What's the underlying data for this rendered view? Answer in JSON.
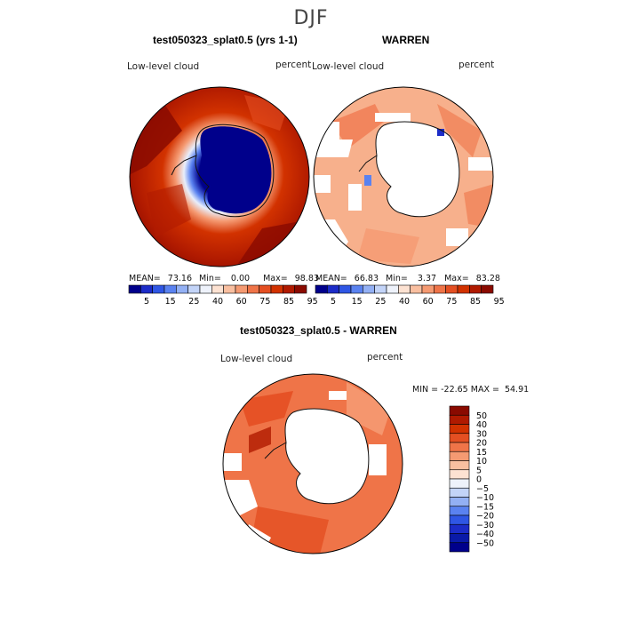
{
  "season": "DJF",
  "panels": [
    {
      "title": "test050323_splat0.5 (yrs 1-1)",
      "variable": "Low-level cloud",
      "units": "percent",
      "stats": {
        "mean_label": "MEAN=",
        "mean": "73.16",
        "min_label": "Min=",
        "min": "0.00",
        "max_label": "Max=",
        "max": "98.83"
      }
    },
    {
      "title": "WARREN",
      "variable": "Low-level cloud",
      "units": "percent",
      "stats": {
        "mean_label": "MEAN=",
        "mean": "66.83",
        "min_label": "Min=",
        "min": "3.37",
        "max_label": "Max=",
        "max": "83.28"
      }
    },
    {
      "title": "test050323_splat0.5 - WARREN",
      "variable": "Low-level cloud",
      "units": "percent",
      "minmax_text": "MIN = -22.65 MAX =  54.91"
    }
  ],
  "absolute_colorbar": {
    "labels": [
      "5",
      "15",
      "25",
      "40",
      "60",
      "75",
      "85",
      "95"
    ],
    "colors": [
      "#00008b",
      "#1c2cc8",
      "#2f56e4",
      "#5a82f0",
      "#93b0f4",
      "#c3d4f8",
      "#eef2fb",
      "#fde2d2",
      "#f9bfa0",
      "#f59a72",
      "#ef7448",
      "#e44f22",
      "#d23200",
      "#b01a00",
      "#8a0a00"
    ]
  },
  "diff_colorbar": {
    "labels": [
      "50",
      "40",
      "30",
      "20",
      "15",
      "10",
      "5",
      "0",
      "−5",
      "−10",
      "−15",
      "−20",
      "−30",
      "−40",
      "−50"
    ],
    "colors": [
      "#8a0a00",
      "#b01a00",
      "#d23200",
      "#e44f22",
      "#ef7448",
      "#f59a72",
      "#f9bfa0",
      "#fde2d2",
      "#eef2fb",
      "#c3d4f8",
      "#93b0f4",
      "#5a82f0",
      "#2f56e4",
      "#1c2cc8",
      "#0a1aa8",
      "#00008b"
    ]
  }
}
